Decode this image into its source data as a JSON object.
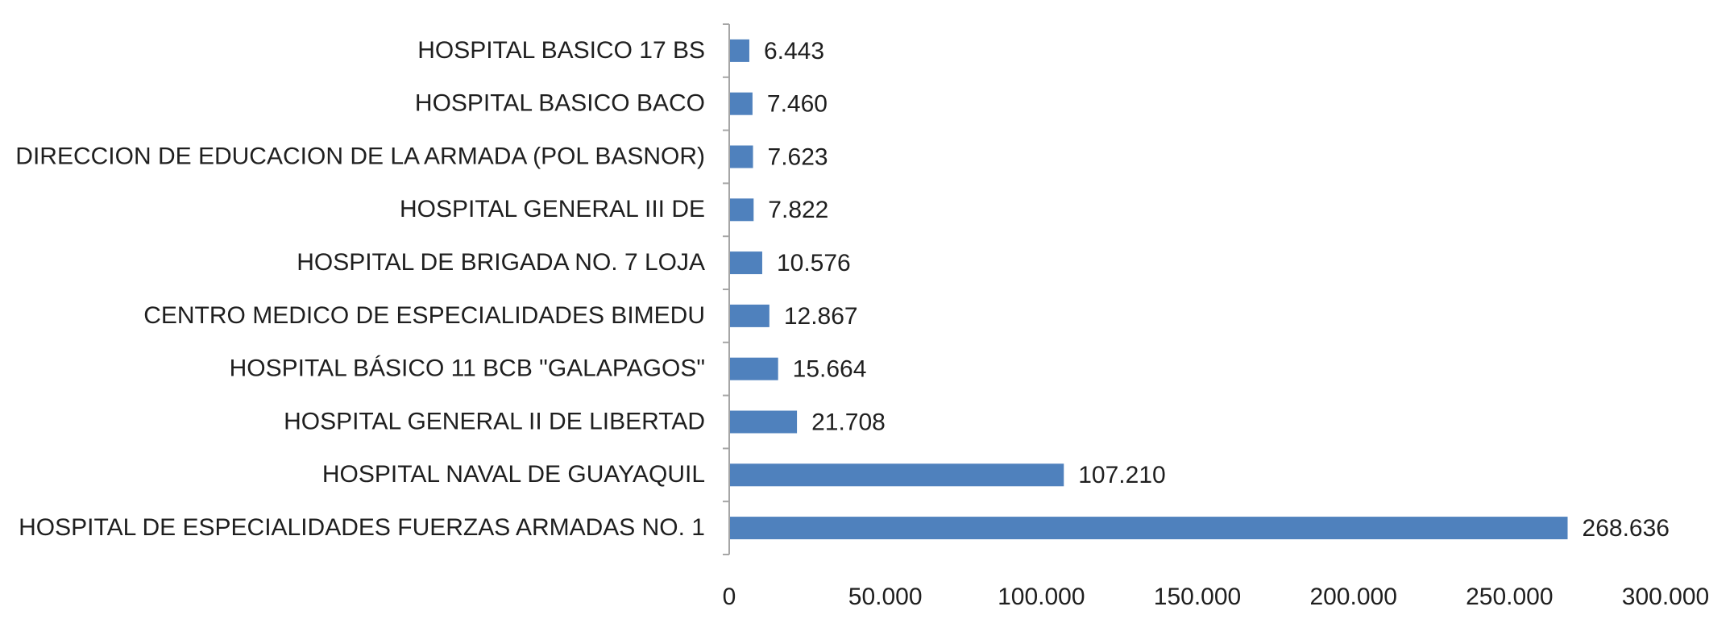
{
  "chart_data": {
    "type": "bar",
    "orientation": "horizontal",
    "title": "",
    "xlabel": "",
    "ylabel": "",
    "categories": [
      "HOSPITAL BASICO 17 BS",
      "HOSPITAL BASICO BACO",
      "DIRECCION DE EDUCACION DE LA ARMADA (POL BASNOR)",
      "HOSPITAL GENERAL III DE",
      "HOSPITAL DE BRIGADA NO. 7 LOJA",
      "CENTRO MEDICO DE ESPECIALIDADES BIMEDU",
      "HOSPITAL BÁSICO 11 BCB \"GALAPAGOS\"",
      "HOSPITAL GENERAL II DE LIBERTAD",
      "HOSPITAL NAVAL DE GUAYAQUIL",
      "HOSPITAL DE ESPECIALIDADES FUERZAS ARMADAS NO. 1"
    ],
    "values": [
      6443,
      7460,
      7623,
      7822,
      10576,
      12867,
      15664,
      21708,
      107210,
      268636
    ],
    "value_labels": [
      "6.443",
      "7.460",
      "7.623",
      "7.822",
      "10.576",
      "12.867",
      "15.664",
      "21.708",
      "107.210",
      "268.636"
    ],
    "xlim": [
      0,
      300000
    ],
    "x_ticks": [
      0,
      50000,
      100000,
      150000,
      200000,
      250000,
      300000
    ],
    "x_tick_labels": [
      "0",
      "50.000",
      "100.000",
      "150.000",
      "200.000",
      "250.000",
      "300.000"
    ],
    "grid": false,
    "legend": "none",
    "bar_color": "#4f81bd",
    "axis_color": "#a6a6a6"
  }
}
